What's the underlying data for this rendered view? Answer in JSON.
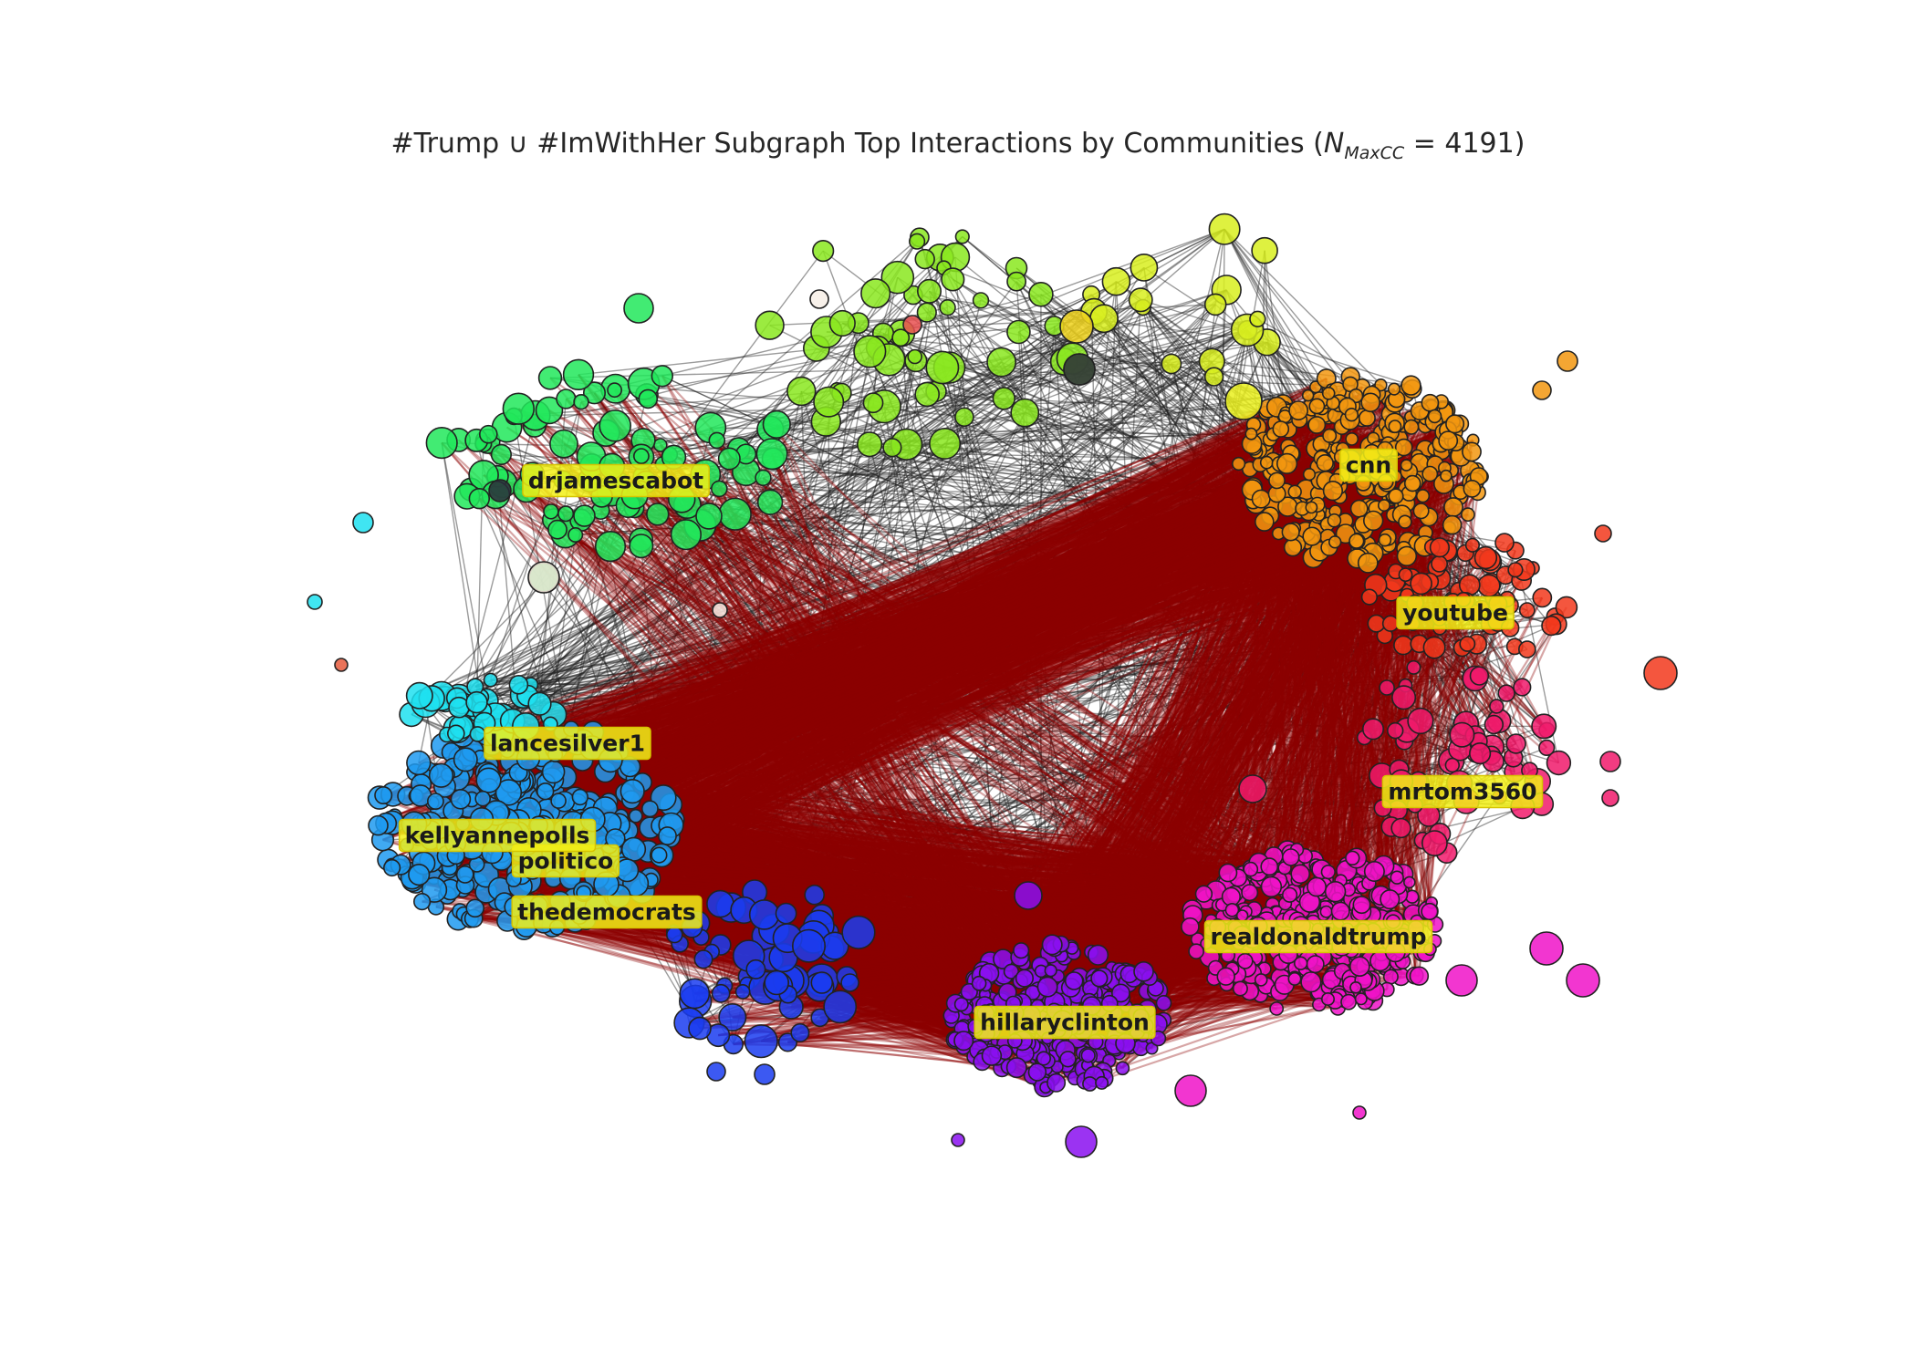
{
  "title": {
    "prefix": "#Trump ∪ #ImWithHer Subgraph Top Interactions by Communities (",
    "n_symbol": "N",
    "n_subscript": "MaxCC",
    "equals": " = ",
    "n_value": "4191",
    "suffix": ")"
  },
  "communities": [
    {
      "name": "cnn",
      "color": "#f2960f",
      "hub_label": "cnn"
    },
    {
      "name": "youtube",
      "color": "#f2381c",
      "hub_label": "youtube"
    },
    {
      "name": "mrtom3560",
      "color": "#f01a6b",
      "hub_label": "mrtom3560"
    },
    {
      "name": "realdonaldtrump",
      "color": "#f013c8",
      "hub_label": "realdonaldtrump"
    },
    {
      "name": "hillaryclinton",
      "color": "#8a0ff0",
      "hub_label": "hillaryclinton"
    },
    {
      "name": "thedemocrats",
      "color": "#1a3cf0",
      "hub_label": "thedemocrats"
    },
    {
      "name": "blue-cluster",
      "color": "#1e9af0",
      "hub_label": ""
    },
    {
      "name": "cyan-cluster",
      "color": "#1ee0f0",
      "hub_label": ""
    },
    {
      "name": "green-cluster",
      "color": "#21e85a",
      "hub_label": "drjamescabot"
    },
    {
      "name": "lime-cluster",
      "color": "#8ae81e",
      "hub_label": ""
    },
    {
      "name": "yellow-cluster",
      "color": "#d8ee1e",
      "hub_label": ""
    }
  ],
  "labels": [
    "cnn",
    "youtube",
    "mrtom3560",
    "realdonaldtrump",
    "hillaryclinton",
    "thedemocrats",
    "politico",
    "kellyannepolls",
    "lancesilver1",
    "drjamescabot"
  ],
  "colors": {
    "strong_edge": "#8b0000",
    "weak_edge": "#222222",
    "label_fill": "#f2f016",
    "node_outline": "#222222"
  }
}
